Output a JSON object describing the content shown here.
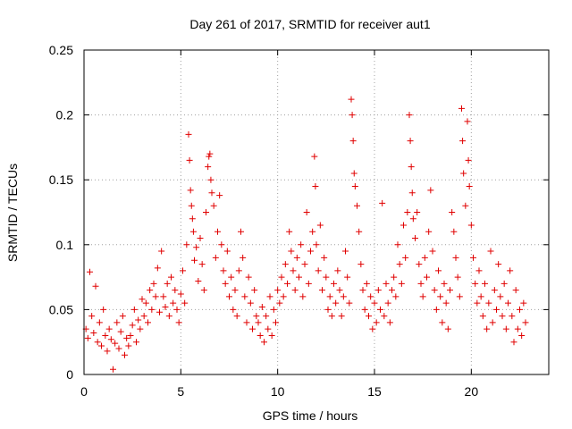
{
  "chart_data": {
    "type": "scatter",
    "title": "Day 261 of 2017, SRMTID for receiver aut1",
    "xlabel": "GPS time / hours",
    "ylabel": "SRMTID / TECUs",
    "xlim": [
      0,
      24
    ],
    "ylim": [
      0,
      0.25
    ],
    "xticks": [
      0,
      5,
      10,
      15,
      20
    ],
    "yticks": [
      0,
      0.05,
      0.1,
      0.15,
      0.2,
      0.25
    ],
    "xtick_labels": [
      "0",
      "5",
      "10",
      "15",
      "20"
    ],
    "ytick_labels": [
      "0",
      "0.05",
      "0.1",
      "0.15",
      "0.2",
      "0.25"
    ],
    "grid": true,
    "marker": "+",
    "marker_color": "#e00000",
    "series": [
      {
        "name": "SRMTID",
        "points": [
          [
            0.1,
            0.035
          ],
          [
            0.2,
            0.028
          ],
          [
            0.3,
            0.079
          ],
          [
            0.4,
            0.045
          ],
          [
            0.5,
            0.032
          ],
          [
            0.6,
            0.068
          ],
          [
            0.7,
            0.025
          ],
          [
            0.8,
            0.04
          ],
          [
            0.9,
            0.022
          ],
          [
            1.0,
            0.05
          ],
          [
            1.1,
            0.03
          ],
          [
            1.2,
            0.018
          ],
          [
            1.3,
            0.035
          ],
          [
            1.4,
            0.027
          ],
          [
            1.5,
            0.004
          ],
          [
            1.6,
            0.024
          ],
          [
            1.7,
            0.04
          ],
          [
            1.8,
            0.02
          ],
          [
            1.9,
            0.033
          ],
          [
            2.0,
            0.045
          ],
          [
            2.1,
            0.015
          ],
          [
            2.2,
            0.028
          ],
          [
            2.3,
            0.022
          ],
          [
            2.4,
            0.03
          ],
          [
            2.5,
            0.038
          ],
          [
            2.6,
            0.05
          ],
          [
            2.7,
            0.025
          ],
          [
            2.8,
            0.042
          ],
          [
            2.9,
            0.035
          ],
          [
            3.0,
            0.058
          ],
          [
            3.1,
            0.045
          ],
          [
            3.2,
            0.055
          ],
          [
            3.3,
            0.04
          ],
          [
            3.4,
            0.065
          ],
          [
            3.5,
            0.05
          ],
          [
            3.6,
            0.07
          ],
          [
            3.7,
            0.06
          ],
          [
            3.8,
            0.082
          ],
          [
            3.9,
            0.048
          ],
          [
            4.0,
            0.095
          ],
          [
            4.1,
            0.06
          ],
          [
            4.2,
            0.052
          ],
          [
            4.3,
            0.07
          ],
          [
            4.4,
            0.045
          ],
          [
            4.5,
            0.075
          ],
          [
            4.6,
            0.055
          ],
          [
            4.7,
            0.065
          ],
          [
            4.8,
            0.05
          ],
          [
            4.9,
            0.04
          ],
          [
            5.0,
            0.062
          ],
          [
            5.1,
            0.08
          ],
          [
            5.2,
            0.055
          ],
          [
            5.3,
            0.1
          ],
          [
            5.4,
            0.185
          ],
          [
            5.45,
            0.165
          ],
          [
            5.5,
            0.142
          ],
          [
            5.55,
            0.13
          ],
          [
            5.6,
            0.12
          ],
          [
            5.65,
            0.11
          ],
          [
            5.7,
            0.088
          ],
          [
            5.8,
            0.098
          ],
          [
            5.9,
            0.072
          ],
          [
            6.0,
            0.105
          ],
          [
            6.1,
            0.085
          ],
          [
            6.2,
            0.065
          ],
          [
            6.3,
            0.125
          ],
          [
            6.4,
            0.16
          ],
          [
            6.45,
            0.168
          ],
          [
            6.5,
            0.17
          ],
          [
            6.55,
            0.15
          ],
          [
            6.6,
            0.14
          ],
          [
            6.7,
            0.13
          ],
          [
            6.8,
            0.09
          ],
          [
            6.9,
            0.11
          ],
          [
            7.0,
            0.138
          ],
          [
            7.1,
            0.1
          ],
          [
            7.2,
            0.08
          ],
          [
            7.3,
            0.07
          ],
          [
            7.4,
            0.095
          ],
          [
            7.5,
            0.06
          ],
          [
            7.6,
            0.075
          ],
          [
            7.7,
            0.05
          ],
          [
            7.8,
            0.065
          ],
          [
            7.9,
            0.045
          ],
          [
            8.0,
            0.08
          ],
          [
            8.1,
            0.11
          ],
          [
            8.2,
            0.09
          ],
          [
            8.3,
            0.06
          ],
          [
            8.4,
            0.04
          ],
          [
            8.5,
            0.075
          ],
          [
            8.6,
            0.055
          ],
          [
            8.7,
            0.035
          ],
          [
            8.8,
            0.065
          ],
          [
            8.9,
            0.045
          ],
          [
            9.0,
            0.04
          ],
          [
            9.1,
            0.03
          ],
          [
            9.2,
            0.052
          ],
          [
            9.3,
            0.025
          ],
          [
            9.4,
            0.045
          ],
          [
            9.5,
            0.035
          ],
          [
            9.6,
            0.06
          ],
          [
            9.7,
            0.03
          ],
          [
            9.8,
            0.05
          ],
          [
            9.9,
            0.04
          ],
          [
            10.0,
            0.065
          ],
          [
            10.1,
            0.055
          ],
          [
            10.2,
            0.075
          ],
          [
            10.3,
            0.06
          ],
          [
            10.4,
            0.085
          ],
          [
            10.5,
            0.07
          ],
          [
            10.6,
            0.11
          ],
          [
            10.7,
            0.095
          ],
          [
            10.8,
            0.08
          ],
          [
            10.9,
            0.065
          ],
          [
            11.0,
            0.09
          ],
          [
            11.1,
            0.075
          ],
          [
            11.2,
            0.1
          ],
          [
            11.3,
            0.06
          ],
          [
            11.4,
            0.085
          ],
          [
            11.5,
            0.125
          ],
          [
            11.6,
            0.07
          ],
          [
            11.7,
            0.095
          ],
          [
            11.8,
            0.11
          ],
          [
            11.9,
            0.168
          ],
          [
            11.95,
            0.145
          ],
          [
            12.0,
            0.1
          ],
          [
            12.1,
            0.08
          ],
          [
            12.2,
            0.115
          ],
          [
            12.3,
            0.065
          ],
          [
            12.4,
            0.09
          ],
          [
            12.5,
            0.075
          ],
          [
            12.6,
            0.05
          ],
          [
            12.7,
            0.06
          ],
          [
            12.8,
            0.045
          ],
          [
            12.9,
            0.07
          ],
          [
            13.0,
            0.055
          ],
          [
            13.1,
            0.08
          ],
          [
            13.2,
            0.065
          ],
          [
            13.3,
            0.045
          ],
          [
            13.4,
            0.06
          ],
          [
            13.5,
            0.095
          ],
          [
            13.6,
            0.075
          ],
          [
            13.7,
            0.055
          ],
          [
            13.8,
            0.212
          ],
          [
            13.85,
            0.2
          ],
          [
            13.9,
            0.18
          ],
          [
            13.95,
            0.155
          ],
          [
            14.0,
            0.145
          ],
          [
            14.1,
            0.13
          ],
          [
            14.2,
            0.11
          ],
          [
            14.3,
            0.085
          ],
          [
            14.4,
            0.065
          ],
          [
            14.5,
            0.05
          ],
          [
            14.6,
            0.07
          ],
          [
            14.7,
            0.045
          ],
          [
            14.8,
            0.06
          ],
          [
            14.9,
            0.035
          ],
          [
            15.0,
            0.055
          ],
          [
            15.1,
            0.04
          ],
          [
            15.2,
            0.065
          ],
          [
            15.3,
            0.05
          ],
          [
            15.4,
            0.132
          ],
          [
            15.5,
            0.045
          ],
          [
            15.6,
            0.07
          ],
          [
            15.7,
            0.055
          ],
          [
            15.8,
            0.04
          ],
          [
            15.9,
            0.065
          ],
          [
            16.0,
            0.075
          ],
          [
            16.1,
            0.06
          ],
          [
            16.2,
            0.1
          ],
          [
            16.3,
            0.085
          ],
          [
            16.4,
            0.07
          ],
          [
            16.5,
            0.115
          ],
          [
            16.6,
            0.09
          ],
          [
            16.7,
            0.125
          ],
          [
            16.8,
            0.2
          ],
          [
            16.85,
            0.18
          ],
          [
            16.9,
            0.16
          ],
          [
            16.95,
            0.14
          ],
          [
            17.0,
            0.12
          ],
          [
            17.1,
            0.105
          ],
          [
            17.2,
            0.125
          ],
          [
            17.3,
            0.085
          ],
          [
            17.4,
            0.07
          ],
          [
            17.5,
            0.06
          ],
          [
            17.6,
            0.09
          ],
          [
            17.7,
            0.075
          ],
          [
            17.8,
            0.11
          ],
          [
            17.9,
            0.142
          ],
          [
            18.0,
            0.095
          ],
          [
            18.1,
            0.065
          ],
          [
            18.2,
            0.05
          ],
          [
            18.3,
            0.08
          ],
          [
            18.4,
            0.06
          ],
          [
            18.5,
            0.04
          ],
          [
            18.6,
            0.07
          ],
          [
            18.7,
            0.055
          ],
          [
            18.8,
            0.035
          ],
          [
            18.9,
            0.065
          ],
          [
            19.0,
            0.125
          ],
          [
            19.1,
            0.11
          ],
          [
            19.2,
            0.09
          ],
          [
            19.3,
            0.075
          ],
          [
            19.4,
            0.06
          ],
          [
            19.5,
            0.205
          ],
          [
            19.55,
            0.18
          ],
          [
            19.6,
            0.155
          ],
          [
            19.7,
            0.13
          ],
          [
            19.8,
            0.195
          ],
          [
            19.85,
            0.165
          ],
          [
            19.9,
            0.145
          ],
          [
            20.0,
            0.115
          ],
          [
            20.1,
            0.09
          ],
          [
            20.2,
            0.07
          ],
          [
            20.3,
            0.055
          ],
          [
            20.4,
            0.08
          ],
          [
            20.5,
            0.06
          ],
          [
            20.6,
            0.045
          ],
          [
            20.7,
            0.07
          ],
          [
            20.8,
            0.035
          ],
          [
            20.9,
            0.055
          ],
          [
            21.0,
            0.095
          ],
          [
            21.1,
            0.04
          ],
          [
            21.2,
            0.065
          ],
          [
            21.3,
            0.05
          ],
          [
            21.4,
            0.085
          ],
          [
            21.5,
            0.06
          ],
          [
            21.6,
            0.045
          ],
          [
            21.7,
            0.07
          ],
          [
            21.8,
            0.035
          ],
          [
            21.9,
            0.055
          ],
          [
            22.0,
            0.08
          ],
          [
            22.1,
            0.045
          ],
          [
            22.2,
            0.025
          ],
          [
            22.3,
            0.065
          ],
          [
            22.4,
            0.035
          ],
          [
            22.5,
            0.05
          ],
          [
            22.6,
            0.03
          ],
          [
            22.7,
            0.055
          ],
          [
            22.8,
            0.04
          ]
        ]
      }
    ]
  }
}
